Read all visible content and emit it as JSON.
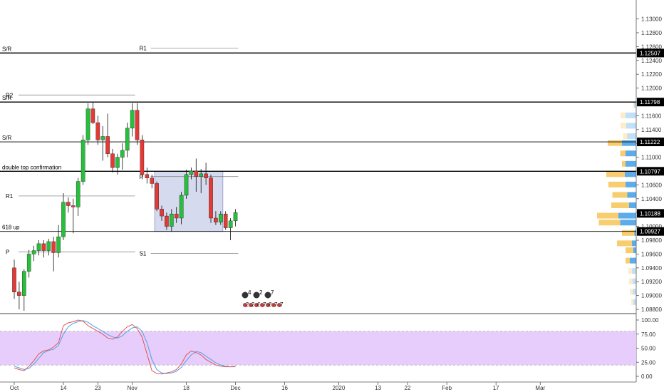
{
  "chart_data": {
    "type": "candlestick",
    "price_axis": {
      "labels": [
        "1.13000",
        "1.12800",
        "1.12600",
        "1.12400",
        "1.12200",
        "1.12000",
        "1.11800",
        "1.11600",
        "1.11400",
        "1.11200",
        "1.11000",
        "1.10800",
        "1.10600",
        "1.10400",
        "1.10200",
        "1.10000",
        "1.09800",
        "1.09600",
        "1.09400",
        "1.09200",
        "1.09000",
        "1.08800"
      ],
      "ylim": [
        1.0878,
        1.1315
      ]
    },
    "price_tags": [
      {
        "value": 1.12507,
        "label": "1.12507",
        "color": "#000000"
      },
      {
        "value": 1.11798,
        "label": "1.11798",
        "color": "#000000"
      },
      {
        "value": 1.11222,
        "label": "1.11222",
        "color": "#000000"
      },
      {
        "value": 1.10797,
        "label": "1.10797",
        "color": "#000000"
      },
      {
        "value": 1.10188,
        "label": "1.10188",
        "color": "#000000"
      },
      {
        "value": 1.09927,
        "label": "1.09927",
        "color": "#000000"
      }
    ],
    "time_axis": {
      "labels": [
        {
          "text": "Oct",
          "bar": 0
        },
        {
          "text": "14",
          "bar": 10
        },
        {
          "text": "23",
          "bar": 17
        },
        {
          "text": "Nov",
          "bar": 24
        },
        {
          "text": "18",
          "bar": 35
        },
        {
          "text": "Dec",
          "bar": 45
        },
        {
          "text": "16",
          "bar": 55
        },
        {
          "text": "2020",
          "bar": 66
        },
        {
          "text": "13",
          "bar": 74
        },
        {
          "text": "22",
          "bar": 80
        },
        {
          "text": "Feb",
          "bar": 88
        },
        {
          "text": "17",
          "bar": 98
        },
        {
          "text": "Mar",
          "bar": 107
        }
      ]
    },
    "levels": [
      {
        "label": "S/R",
        "value": 1.12507,
        "style": "bold",
        "span": "full"
      },
      {
        "label": "S/R",
        "value": 1.11798,
        "style": "bold",
        "span": "full"
      },
      {
        "label": "S/R",
        "value": 1.11222,
        "style": "normal",
        "span": "full"
      },
      {
        "label": "double top confirmation",
        "value": 1.10797,
        "style": "bold",
        "span": "full"
      },
      {
        "label": "618 up",
        "value": 1.09927,
        "style": "normal",
        "span": "full"
      }
    ],
    "pivots": [
      {
        "label": "R1",
        "value": 1.1258,
        "from_bar": 24,
        "to_bar": 45,
        "label_side": "left"
      },
      {
        "label": "R2",
        "value": 1.119,
        "from_bar": 0,
        "to_bar": 24,
        "label_side": "left"
      },
      {
        "label": "R1",
        "value": 1.1044,
        "from_bar": 0,
        "to_bar": 24,
        "label_side": "left"
      },
      {
        "label": "P",
        "value": 1.0963,
        "from_bar": 0,
        "to_bar": 24,
        "label_side": "left"
      },
      {
        "label": "P",
        "value": 1.1072,
        "from_bar": 24,
        "to_bar": 45,
        "label_side": "left"
      },
      {
        "label": "S1",
        "value": 1.0961,
        "from_bar": 24,
        "to_bar": 45,
        "label_side": "left"
      }
    ],
    "range_box": {
      "from_bar": 29,
      "to_bar": 42,
      "top": 1.10797,
      "bottom": 1.09927
    },
    "candles": [
      {
        "o": 1.094,
        "h": 1.0952,
        "l": 1.0895,
        "c": 1.0905
      },
      {
        "o": 1.0905,
        "h": 1.092,
        "l": 1.088,
        "c": 1.09
      },
      {
        "o": 1.09,
        "h": 1.0938,
        "l": 1.0878,
        "c": 1.0935
      },
      {
        "o": 1.0935,
        "h": 1.0966,
        "l": 1.0926,
        "c": 1.096
      },
      {
        "o": 1.096,
        "h": 1.0972,
        "l": 1.095,
        "c": 1.0965
      },
      {
        "o": 1.0965,
        "h": 1.098,
        "l": 1.0958,
        "c": 1.0975
      },
      {
        "o": 1.0975,
        "h": 1.098,
        "l": 1.0955,
        "c": 1.0965
      },
      {
        "o": 1.0965,
        "h": 1.0982,
        "l": 1.0958,
        "c": 1.0978
      },
      {
        "o": 1.0978,
        "h": 1.0985,
        "l": 1.0935,
        "c": 1.0962
      },
      {
        "o": 1.0962,
        "h": 1.1002,
        "l": 1.0955,
        "c": 1.0985
      },
      {
        "o": 1.0985,
        "h": 1.1048,
        "l": 1.098,
        "c": 1.1035
      },
      {
        "o": 1.1035,
        "h": 1.1042,
        "l": 1.102,
        "c": 1.103
      },
      {
        "o": 1.103,
        "h": 1.104,
        "l": 1.099,
        "c": 1.1028
      },
      {
        "o": 1.1028,
        "h": 1.107,
        "l": 1.1015,
        "c": 1.1065
      },
      {
        "o": 1.1065,
        "h": 1.1132,
        "l": 1.106,
        "c": 1.1125
      },
      {
        "o": 1.1125,
        "h": 1.1178,
        "l": 1.1118,
        "c": 1.117
      },
      {
        "o": 1.117,
        "h": 1.118,
        "l": 1.1148,
        "c": 1.115
      },
      {
        "o": 1.115,
        "h": 1.116,
        "l": 1.1118,
        "c": 1.1125
      },
      {
        "o": 1.1125,
        "h": 1.1145,
        "l": 1.1095,
        "c": 1.113
      },
      {
        "o": 1.113,
        "h": 1.1163,
        "l": 1.11,
        "c": 1.1105
      },
      {
        "o": 1.1105,
        "h": 1.1112,
        "l": 1.1078,
        "c": 1.1085
      },
      {
        "o": 1.1085,
        "h": 1.1105,
        "l": 1.1075,
        "c": 1.11
      },
      {
        "o": 1.11,
        "h": 1.112,
        "l": 1.1082,
        "c": 1.111
      },
      {
        "o": 1.111,
        "h": 1.115,
        "l": 1.11,
        "c": 1.1142
      },
      {
        "o": 1.1142,
        "h": 1.1178,
        "l": 1.113,
        "c": 1.1168
      },
      {
        "o": 1.1168,
        "h": 1.1178,
        "l": 1.1118,
        "c": 1.1125
      },
      {
        "o": 1.1125,
        "h": 1.1132,
        "l": 1.1068,
        "c": 1.1075
      },
      {
        "o": 1.1075,
        "h": 1.1085,
        "l": 1.1062,
        "c": 1.107
      },
      {
        "o": 1.107,
        "h": 1.1075,
        "l": 1.1055,
        "c": 1.1062
      },
      {
        "o": 1.1062,
        "h": 1.1065,
        "l": 1.1022,
        "c": 1.1025
      },
      {
        "o": 1.1025,
        "h": 1.103,
        "l": 1.1008,
        "c": 1.1015
      },
      {
        "o": 1.1015,
        "h": 1.102,
        "l": 1.0995,
        "c": 1.1
      },
      {
        "o": 1.1,
        "h": 1.1025,
        "l": 1.0992,
        "c": 1.1018
      },
      {
        "o": 1.1018,
        "h": 1.1028,
        "l": 1.1005,
        "c": 1.1012
      },
      {
        "o": 1.1012,
        "h": 1.105,
        "l": 1.1003,
        "c": 1.1045
      },
      {
        "o": 1.1045,
        "h": 1.1082,
        "l": 1.104,
        "c": 1.1075
      },
      {
        "o": 1.1075,
        "h": 1.1085,
        "l": 1.1068,
        "c": 1.108
      },
      {
        "o": 1.108,
        "h": 1.1098,
        "l": 1.105,
        "c": 1.1072
      },
      {
        "o": 1.1072,
        "h": 1.1083,
        "l": 1.1048,
        "c": 1.1076
      },
      {
        "o": 1.1076,
        "h": 1.1092,
        "l": 1.106,
        "c": 1.107
      },
      {
        "o": 1.107,
        "h": 1.1075,
        "l": 1.1005,
        "c": 1.1012
      },
      {
        "o": 1.1012,
        "h": 1.1022,
        "l": 1.1002,
        "c": 1.1006
      },
      {
        "o": 1.1006,
        "h": 1.1022,
        "l": 1.1002,
        "c": 1.1018
      },
      {
        "o": 1.1018,
        "h": 1.1022,
        "l": 1.0995,
        "c": 1.0998
      },
      {
        "o": 1.0998,
        "h": 1.1012,
        "l": 1.098,
        "c": 1.1008
      },
      {
        "o": 1.1008,
        "h": 1.1025,
        "l": 1.1,
        "c": 1.102
      }
    ],
    "volume_profile": [
      {
        "price": 1.1175,
        "up": 0.03,
        "down": 0.06
      },
      {
        "price": 1.116,
        "up": 0.14,
        "down": 0.3
      },
      {
        "price": 1.1145,
        "up": 0.16,
        "down": 0.28
      },
      {
        "price": 1.113,
        "up": 0.12,
        "down": 0.25
      },
      {
        "price": 1.112,
        "up": 0.4,
        "down": 0.4
      },
      {
        "price": 1.1105,
        "up": 0.15,
        "down": 0.3
      },
      {
        "price": 1.109,
        "up": 0.1,
        "down": 0.3
      },
      {
        "price": 1.1075,
        "up": 0.52,
        "down": 0.32
      },
      {
        "price": 1.106,
        "up": 0.48,
        "down": 0.3
      },
      {
        "price": 1.1045,
        "up": 0.42,
        "down": 0.25
      },
      {
        "price": 1.103,
        "up": 0.5,
        "down": 0.2
      },
      {
        "price": 1.1015,
        "up": 0.6,
        "down": 0.5
      },
      {
        "price": 1.1005,
        "up": 0.6,
        "down": 0.45
      },
      {
        "price": 1.099,
        "up": 0.35,
        "down": 0.05
      },
      {
        "price": 1.0975,
        "up": 0.42,
        "down": 0.12
      },
      {
        "price": 1.0965,
        "up": 0.22,
        "down": 0.08
      },
      {
        "price": 1.095,
        "up": 0.12,
        "down": 0.18
      },
      {
        "price": 1.0935,
        "up": 0.1,
        "down": 0.12
      },
      {
        "price": 1.092,
        "up": 0.1,
        "down": 0.1
      },
      {
        "price": 1.0905,
        "up": 0.08,
        "down": 0.1
      },
      {
        "price": 1.089,
        "up": 0.06,
        "down": 0.08
      }
    ],
    "oscillator": {
      "axis_labels": [
        "100.00",
        "75.00",
        "50.00",
        "25.00",
        "0.00"
      ],
      "ylim": [
        0,
        100
      ],
      "band": [
        20,
        80
      ],
      "k": [
        15,
        12,
        10,
        18,
        28,
        40,
        45,
        47,
        52,
        60,
        90,
        95,
        97,
        100,
        98,
        90,
        85,
        80,
        75,
        68,
        66,
        70,
        80,
        88,
        92,
        85,
        70,
        40,
        10,
        5,
        4,
        6,
        8,
        12,
        22,
        38,
        45,
        42,
        38,
        30,
        25,
        20,
        18,
        17,
        17,
        18
      ],
      "d": [
        18,
        15,
        12,
        14,
        22,
        32,
        42,
        46,
        48,
        55,
        75,
        88,
        94,
        97,
        99,
        96,
        90,
        85,
        80,
        74,
        70,
        68,
        72,
        80,
        86,
        88,
        80,
        60,
        30,
        12,
        6,
        5,
        6,
        9,
        16,
        28,
        38,
        44,
        42,
        36,
        30,
        24,
        20,
        18,
        17,
        17
      ]
    },
    "events": [
      {
        "row": "top",
        "labels": [
          "4",
          "2",
          "7"
        ]
      },
      {
        "row": "bottom",
        "labels": [
          "3",
          "2",
          "6",
          "7",
          "8",
          "7",
          "7"
        ]
      }
    ],
    "colors": {
      "up": "#26c13a",
      "down": "#e53935",
      "box": "#c7cde8",
      "vol_up": "#4aa3ea",
      "vol_down": "#f6c860",
      "osc_band": "#e6cdfc",
      "k_line": "#e0574f",
      "d_line": "#4ea1e8"
    }
  }
}
